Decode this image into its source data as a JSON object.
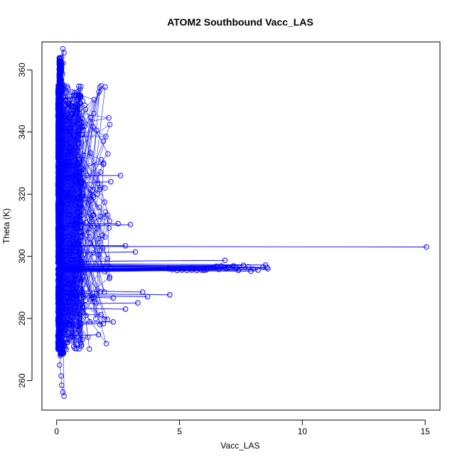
{
  "chart_data": {
    "type": "scatter",
    "title": "ATOM2 Southbound Vacc_LAS",
    "xlabel": "Vacc_LAS",
    "ylabel": "Theta (K)",
    "xlim": [
      -0.6,
      15.6
    ],
    "ylim": [
      250.5,
      369
    ],
    "xticks": [
      0,
      5,
      10,
      15
    ],
    "yticks": [
      260,
      280,
      300,
      320,
      340,
      360
    ],
    "grid": false,
    "legend": "none",
    "series": [
      {
        "color": "#0000ff",
        "marker": "open-circle",
        "connected": true,
        "outliers": [
          [
            15.05,
            303.0
          ],
          [
            4.6,
            287.6
          ],
          [
            2.6,
            326.0
          ],
          [
            2.2,
            324.0
          ],
          [
            3.0,
            310.2
          ],
          [
            3.2,
            301.4
          ],
          [
            1.7,
            274.8
          ],
          [
            1.9,
            278.3
          ],
          [
            2.3,
            278.9
          ],
          [
            2.8,
            303.4
          ],
          [
            2.5,
            310.5
          ],
          [
            1.2,
            310.8
          ],
          [
            1.4,
            318.0
          ],
          [
            1.5,
            319.0
          ],
          [
            0.85,
            338.0
          ],
          [
            0.95,
            351.0
          ],
          [
            0.75,
            326.0
          ],
          [
            0.6,
            348.0
          ],
          [
            2.0,
            296.6
          ],
          [
            2.3,
            286.6
          ],
          [
            2.8,
            283.0
          ],
          [
            3.3,
            285.0
          ],
          [
            3.5,
            288.5
          ],
          [
            3.7,
            287.0
          ],
          [
            1.8,
            281.2
          ]
        ],
        "cluster_295": [
          [
            4.55,
            296.0
          ],
          [
            4.7,
            295.7
          ],
          [
            4.9,
            295.5
          ],
          [
            5.1,
            295.6
          ],
          [
            5.3,
            295.5
          ],
          [
            5.5,
            295.6
          ],
          [
            5.7,
            295.5
          ],
          [
            5.9,
            295.6
          ],
          [
            6.1,
            295.7
          ],
          [
            6.3,
            296.3
          ],
          [
            6.5,
            296.8
          ],
          [
            6.7,
            296.9
          ],
          [
            6.85,
            298.7
          ],
          [
            7.0,
            296.3
          ],
          [
            7.2,
            296.9
          ],
          [
            7.4,
            295.5
          ],
          [
            7.6,
            297.1
          ],
          [
            7.8,
            296.6
          ],
          [
            8.0,
            295.9
          ],
          [
            8.2,
            295.6
          ],
          [
            8.4,
            296.5
          ],
          [
            8.55,
            296.4
          ],
          [
            8.6,
            296.0
          ],
          [
            6.0,
            295.5
          ],
          [
            6.6,
            295.8
          ],
          [
            7.3,
            296.4
          ],
          [
            7.9,
            295.2
          ],
          [
            8.5,
            297.2
          ],
          [
            5.5,
            296.3
          ],
          [
            6.9,
            296.0
          ]
        ],
        "extremes": [
          [
            0.25,
            366.8
          ],
          [
            0.3,
            365.5
          ],
          [
            0.2,
            364.0
          ],
          [
            0.15,
            361.5
          ],
          [
            0.3,
            255.0
          ],
          [
            0.25,
            256.3
          ],
          [
            0.2,
            258.5
          ],
          [
            0.18,
            261.5
          ],
          [
            0.12,
            265.0
          ],
          [
            0.15,
            268.0
          ]
        ]
      }
    ]
  }
}
